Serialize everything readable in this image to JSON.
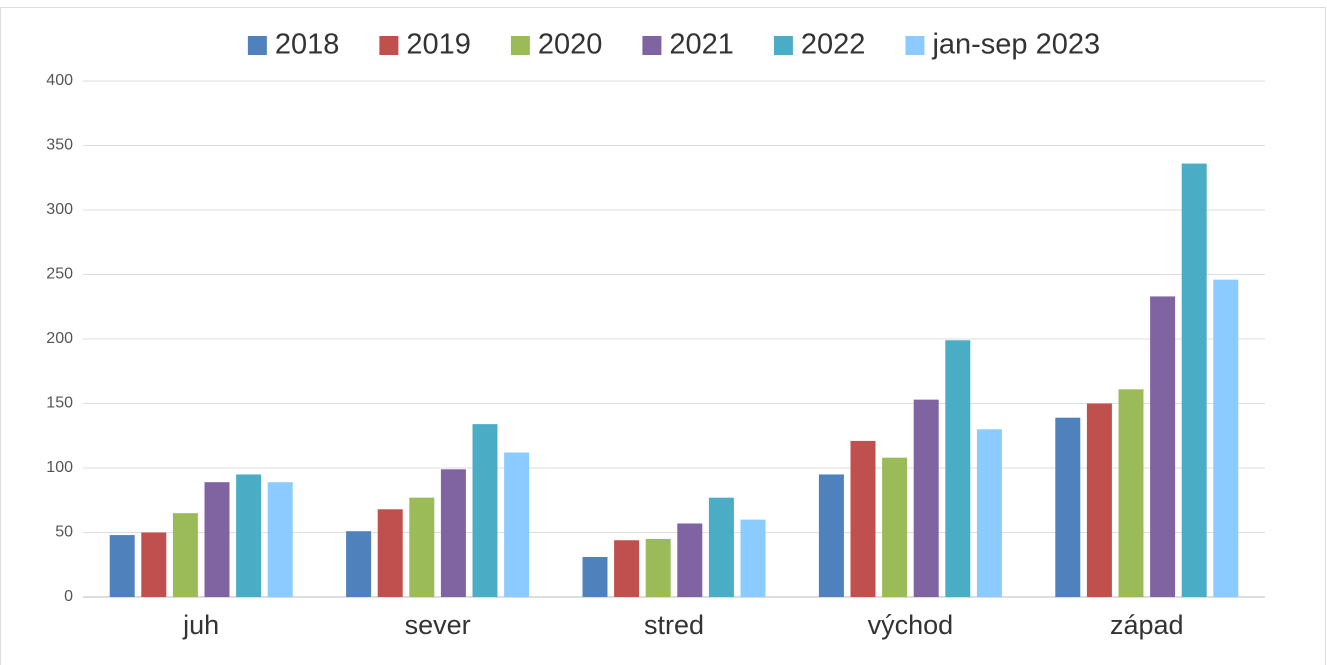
{
  "chart_data": {
    "type": "bar",
    "categories": [
      "juh",
      "sever",
      "stred",
      "východ",
      "západ"
    ],
    "series": [
      {
        "name": "2018",
        "color": "#4f81bd",
        "values": [
          48,
          51,
          31,
          95,
          139
        ]
      },
      {
        "name": "2019",
        "color": "#c0504d",
        "values": [
          50,
          68,
          44,
          121,
          150
        ]
      },
      {
        "name": "2020",
        "color": "#9bbb59",
        "values": [
          65,
          77,
          45,
          108,
          161
        ]
      },
      {
        "name": "2021",
        "color": "#8064a2",
        "values": [
          89,
          99,
          57,
          153,
          233
        ]
      },
      {
        "name": "2022",
        "color": "#4bacc6",
        "values": [
          95,
          134,
          77,
          199,
          336
        ]
      },
      {
        "name": "jan-sep 2023",
        "color": "#8ccbff",
        "values": [
          89,
          112,
          60,
          130,
          246
        ]
      }
    ],
    "ylim": [
      0,
      400
    ],
    "yticks": [
      0,
      50,
      100,
      150,
      200,
      250,
      300,
      350,
      400
    ],
    "grid": true,
    "legend": "top"
  }
}
